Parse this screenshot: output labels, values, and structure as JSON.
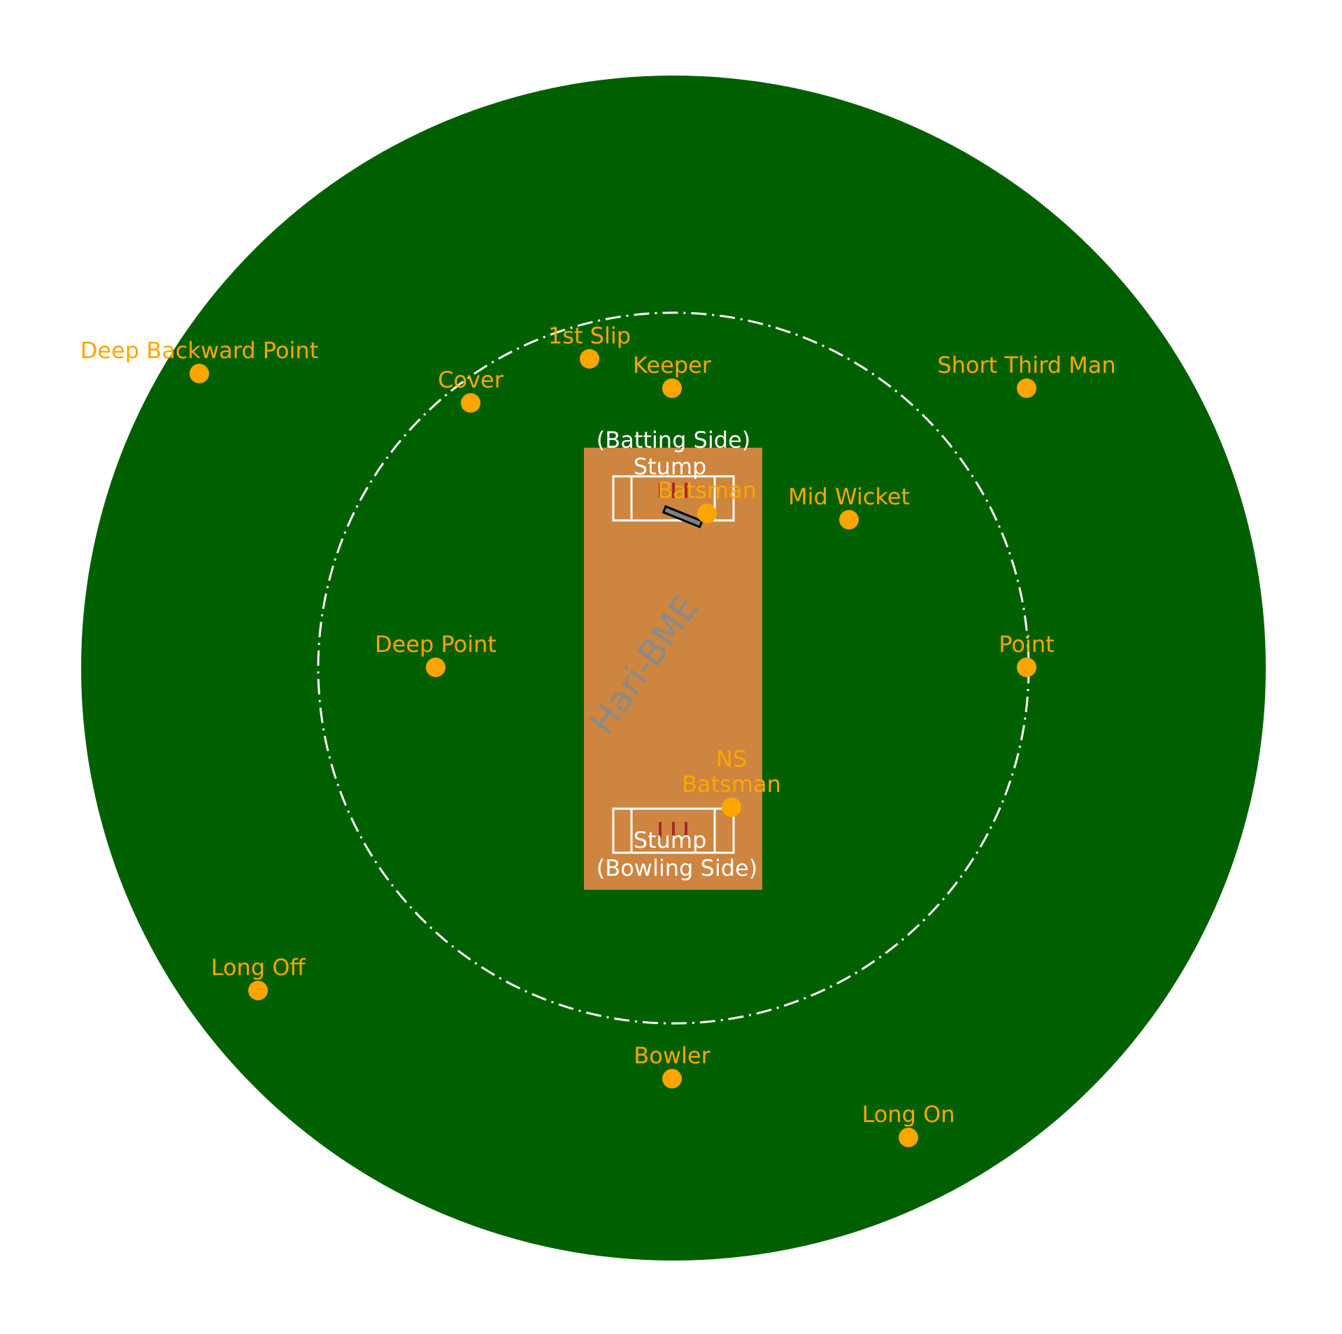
{
  "colors": {
    "outfield": "#006000",
    "pitch": "#cd853f",
    "player": "#ffa500",
    "lines": "#ffffff",
    "stumps": "#a52a2a",
    "watermark": "#8a8a8a"
  },
  "pitch_labels": {
    "batting_side": "(Batting Side)",
    "batting_stump": "Stump",
    "bowling_stump": "Stump",
    "bowling_side": "(Bowling Side)"
  },
  "watermark": "Hari-BME",
  "players": [
    {
      "id": "deep-backward-point",
      "name": "Deep Backward Point"
    },
    {
      "id": "1st-slip",
      "name": "1st Slip"
    },
    {
      "id": "cover",
      "name": "Cover"
    },
    {
      "id": "keeper",
      "name": "Keeper"
    },
    {
      "id": "short-third-man",
      "name": "Short Third Man"
    },
    {
      "id": "batsman",
      "name": "Batsman"
    },
    {
      "id": "mid-wicket",
      "name": "Mid Wicket"
    },
    {
      "id": "deep-point",
      "name": "Deep Point"
    },
    {
      "id": "point",
      "name": "Point"
    },
    {
      "id": "ns-batsman",
      "name": "NS\nBatsman"
    },
    {
      "id": "long-off",
      "name": "Long Off"
    },
    {
      "id": "bowler",
      "name": "Bowler"
    },
    {
      "id": "long-on",
      "name": "Long On"
    }
  ]
}
